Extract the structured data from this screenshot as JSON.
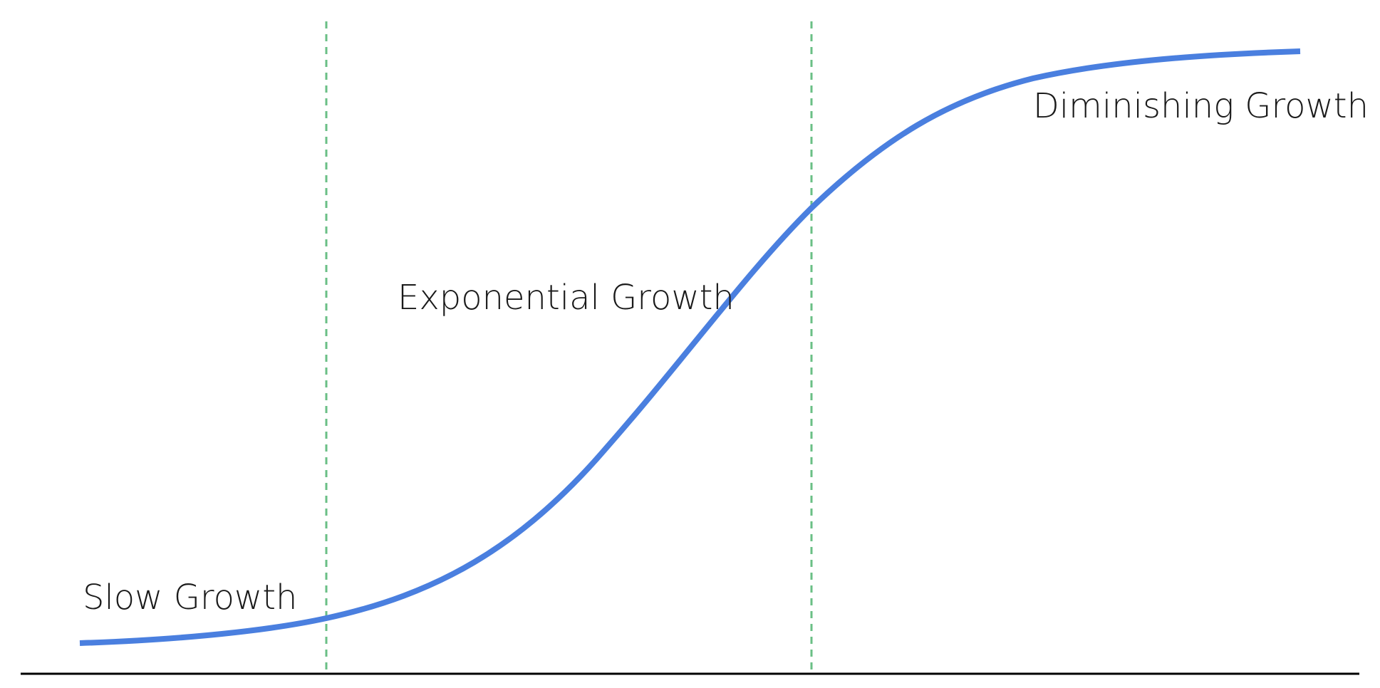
{
  "chart_data": {
    "type": "line",
    "title": "",
    "xlabel": "",
    "ylabel": "",
    "grid": false,
    "curve_color": "#4a7fdf",
    "divider_color": "#6abf85",
    "axis_color": "#000000",
    "phases": [
      {
        "label": "Slow Growth"
      },
      {
        "label": "Exponential Growth"
      },
      {
        "label": "Diminishing Growth"
      }
    ]
  }
}
